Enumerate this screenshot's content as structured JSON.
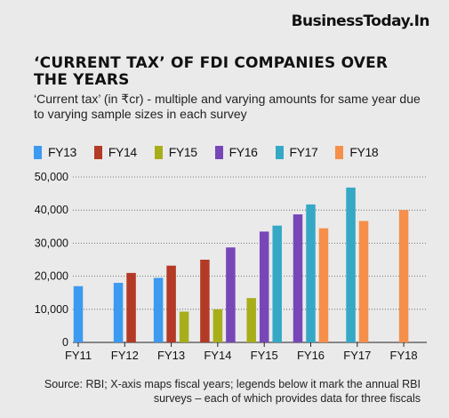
{
  "brand": "BusinessToday.In",
  "colors": {
    "FY13": "#3c9af0",
    "FY14": "#b33a26",
    "FY15": "#a8ae1a",
    "FY16": "#7747b8",
    "FY17": "#35a8c6",
    "FY18": "#f58f4a"
  },
  "chart_data": {
    "type": "bar",
    "title": "‘CURRENT TAX’ OF FDI COMPANIES OVER THE YEARS",
    "subtitle": "‘Current tax’ (in ₹cr) - multiple and varying amounts for same year due to varying sample sizes in each survey",
    "categories": [
      "FY11",
      "FY12",
      "FY13",
      "FY14",
      "FY15",
      "FY16",
      "FY17",
      "FY18"
    ],
    "series": [
      {
        "name": "FY13",
        "values": [
          17000,
          18000,
          19500,
          null,
          null,
          null,
          null,
          null
        ]
      },
      {
        "name": "FY14",
        "values": [
          null,
          21000,
          23200,
          25000,
          null,
          null,
          null,
          null
        ]
      },
      {
        "name": "FY15",
        "values": [
          null,
          null,
          9300,
          10000,
          13400,
          null,
          null,
          null
        ]
      },
      {
        "name": "FY16",
        "values": [
          null,
          null,
          null,
          28700,
          33500,
          38700,
          null,
          null
        ]
      },
      {
        "name": "FY17",
        "values": [
          null,
          null,
          null,
          null,
          35300,
          41700,
          46800,
          null
        ]
      },
      {
        "name": "FY18",
        "values": [
          null,
          null,
          null,
          null,
          null,
          34500,
          36700,
          40000
        ]
      }
    ],
    "ylim": [
      0,
      50000
    ],
    "yticks": [
      "0",
      "10,000",
      "20,000",
      "30,000",
      "40,000",
      "50,000"
    ],
    "xlabel": "",
    "ylabel": "",
    "grid": true,
    "legend": "top-left"
  },
  "source": "Source: RBI; X-axis maps fiscal years; legends below it mark the annual RBI surveys – each of which provides data for three fiscals"
}
